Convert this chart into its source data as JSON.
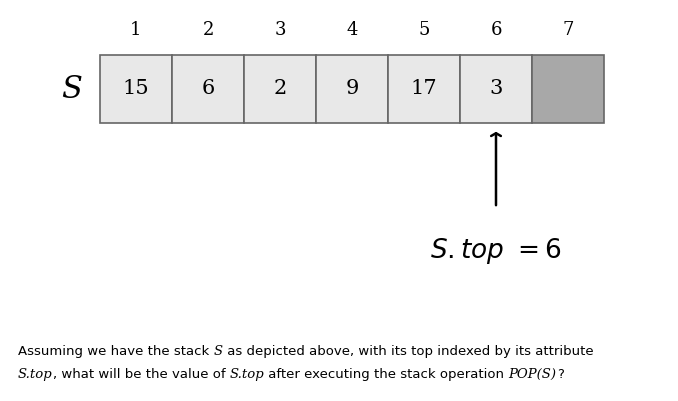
{
  "indices": [
    "1",
    "2",
    "3",
    "4",
    "5",
    "6",
    "7"
  ],
  "values": [
    "15",
    "6",
    "2",
    "9",
    "17",
    "3",
    ""
  ],
  "stack_label": "S",
  "cell_colors": [
    "#e8e8e8",
    "#e8e8e8",
    "#e8e8e8",
    "#e8e8e8",
    "#e8e8e8",
    "#e8e8e8",
    "#a8a8a8"
  ],
  "arrow_at_index": 5,
  "top_label_italic": "S.top",
  "top_label_value": " = 6",
  "footnote_line1": "Assuming we have the stack ",
  "footnote_S": "S",
  "footnote_line1b": " as depicted above, with its top indexed by its attribute",
  "footnote_line2a": "S.top",
  "footnote_line2b": ", what will be the value of ",
  "footnote_line2c": "S.top",
  "footnote_line2d": " after executing the stack operation ",
  "footnote_line2e": "POP(S)",
  "footnote_line2f": "?",
  "bg_color": "#ffffff",
  "edge_color": "#666666",
  "text_color": "#1a1a2e"
}
